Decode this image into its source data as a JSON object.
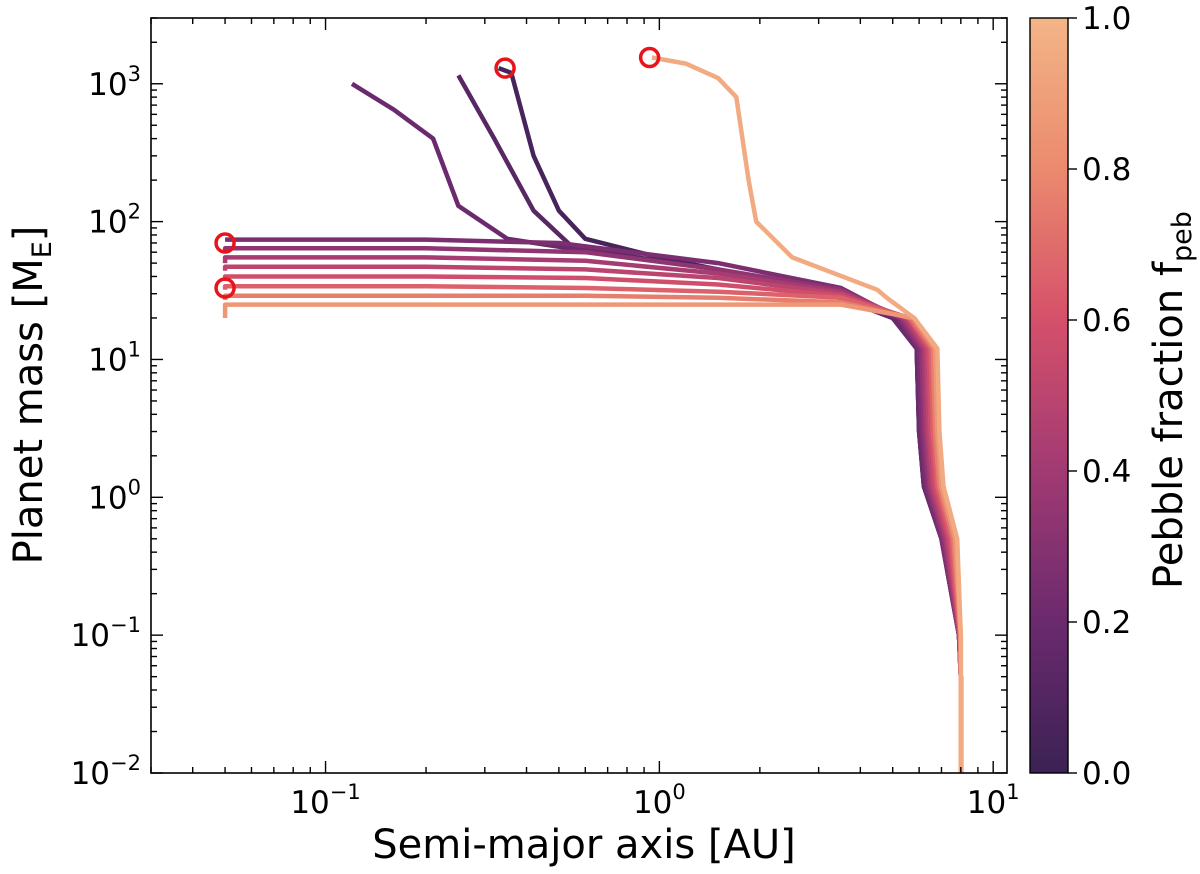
{
  "chart_data": {
    "type": "line",
    "xlabel": "Semi-major axis [AU]",
    "ylabel_main": "Planet mass [M",
    "ylabel_sub": "E",
    "ylabel_end": "]",
    "x_scale": "log",
    "y_scale": "log",
    "xlim": [
      0.03,
      11
    ],
    "ylim": [
      0.01,
      3000
    ],
    "x_ticks": [
      {
        "value": 0.1,
        "base": "10",
        "exp": "−1"
      },
      {
        "value": 1,
        "base": "10",
        "exp": "0"
      },
      {
        "value": 10,
        "base": "10",
        "exp": "1"
      }
    ],
    "y_ticks": [
      {
        "value": 0.01,
        "base": "10",
        "exp": "−2"
      },
      {
        "value": 0.1,
        "base": "10",
        "exp": "−1"
      },
      {
        "value": 1,
        "base": "10",
        "exp": "0"
      },
      {
        "value": 10,
        "base": "10",
        "exp": "1"
      },
      {
        "value": 100,
        "base": "10",
        "exp": "2"
      },
      {
        "value": 1000,
        "base": "10",
        "exp": "3"
      }
    ],
    "grid": false,
    "colorbar": {
      "label_main": "Pebble fraction f",
      "label_sub": "peb",
      "min": 0.0,
      "max": 1.0,
      "ticks": [
        "0.0",
        "0.2",
        "0.4",
        "0.6",
        "0.8",
        "1.0"
      ],
      "colors": [
        "#3b2254",
        "#6b2a6e",
        "#a13a73",
        "#d5506a",
        "#eb8a6e",
        "#f3b587"
      ]
    },
    "series": [
      {
        "fpeb": 0.05,
        "points": [
          [
            8.0,
            0.01
          ],
          [
            8.0,
            0.05
          ],
          [
            7.9,
            0.1
          ],
          [
            7.0,
            0.5
          ],
          [
            6.2,
            1.2
          ],
          [
            6.0,
            3
          ],
          [
            5.9,
            12
          ],
          [
            5.0,
            20
          ],
          [
            3.0,
            32
          ],
          [
            1.5,
            45
          ],
          [
            1.0,
            55
          ],
          [
            0.6,
            75
          ],
          [
            0.5,
            120
          ],
          [
            0.42,
            300
          ],
          [
            0.36,
            1200
          ],
          [
            0.33,
            1300
          ]
        ]
      },
      {
        "fpeb": 0.12,
        "points": [
          [
            8.0,
            0.01
          ],
          [
            8.0,
            0.05
          ],
          [
            7.9,
            0.1
          ],
          [
            7.0,
            0.5
          ],
          [
            6.2,
            1.2
          ],
          [
            6.0,
            3
          ],
          [
            5.9,
            12
          ],
          [
            5.0,
            20
          ],
          [
            3.0,
            32
          ],
          [
            1.5,
            45
          ],
          [
            1.0,
            52
          ],
          [
            0.55,
            65
          ],
          [
            0.42,
            120
          ],
          [
            0.32,
            400
          ],
          [
            0.25,
            1150
          ]
        ]
      },
      {
        "fpeb": 0.2,
        "points": [
          [
            8.0,
            0.01
          ],
          [
            8.0,
            0.05
          ],
          [
            7.9,
            0.1
          ],
          [
            7.0,
            0.5
          ],
          [
            6.2,
            1.2
          ],
          [
            6.0,
            3
          ],
          [
            5.9,
            12
          ],
          [
            5.0,
            20
          ],
          [
            3.0,
            32
          ],
          [
            1.5,
            45
          ],
          [
            0.7,
            58
          ],
          [
            0.35,
            75
          ],
          [
            0.25,
            130
          ],
          [
            0.21,
            400
          ],
          [
            0.16,
            650
          ],
          [
            0.12,
            1000
          ]
        ]
      },
      {
        "fpeb": 0.26,
        "points": [
          [
            8.0,
            0.01
          ],
          [
            8.0,
            0.05
          ],
          [
            7.9,
            0.1
          ],
          [
            7.0,
            0.5
          ],
          [
            6.3,
            1.2
          ],
          [
            6.1,
            3
          ],
          [
            6.0,
            12
          ],
          [
            5.2,
            20
          ],
          [
            3.5,
            33
          ],
          [
            1.5,
            50
          ],
          [
            0.5,
            70
          ],
          [
            0.2,
            74
          ],
          [
            0.05,
            74
          ]
        ]
      },
      {
        "fpeb": 0.34,
        "points": [
          [
            8.0,
            0.01
          ],
          [
            8.0,
            0.05
          ],
          [
            7.9,
            0.1
          ],
          [
            7.1,
            0.5
          ],
          [
            6.4,
            1.2
          ],
          [
            6.2,
            3
          ],
          [
            6.1,
            12
          ],
          [
            5.3,
            20
          ],
          [
            3.5,
            32
          ],
          [
            1.5,
            45
          ],
          [
            0.6,
            60
          ],
          [
            0.2,
            64
          ],
          [
            0.05,
            64
          ],
          [
            0.05,
            60
          ]
        ]
      },
      {
        "fpeb": 0.42,
        "points": [
          [
            8.0,
            0.01
          ],
          [
            8.0,
            0.05
          ],
          [
            7.9,
            0.1
          ],
          [
            7.2,
            0.5
          ],
          [
            6.5,
            1.2
          ],
          [
            6.3,
            3
          ],
          [
            6.2,
            12
          ],
          [
            5.4,
            20
          ],
          [
            3.5,
            31
          ],
          [
            1.5,
            42
          ],
          [
            0.6,
            52
          ],
          [
            0.2,
            55
          ],
          [
            0.05,
            55
          ],
          [
            0.05,
            50
          ]
        ]
      },
      {
        "fpeb": 0.5,
        "points": [
          [
            8.0,
            0.01
          ],
          [
            8.0,
            0.05
          ],
          [
            7.95,
            0.1
          ],
          [
            7.3,
            0.5
          ],
          [
            6.6,
            1.2
          ],
          [
            6.4,
            3
          ],
          [
            6.3,
            12
          ],
          [
            5.5,
            20
          ],
          [
            3.5,
            30
          ],
          [
            1.5,
            39
          ],
          [
            0.6,
            45
          ],
          [
            0.2,
            47
          ],
          [
            0.05,
            47
          ],
          [
            0.05,
            44
          ]
        ]
      },
      {
        "fpeb": 0.58,
        "points": [
          [
            8.0,
            0.01
          ],
          [
            8.0,
            0.05
          ],
          [
            7.95,
            0.1
          ],
          [
            7.4,
            0.5
          ],
          [
            6.7,
            1.2
          ],
          [
            6.5,
            3
          ],
          [
            6.4,
            12
          ],
          [
            5.6,
            20
          ],
          [
            3.5,
            29
          ],
          [
            1.5,
            35
          ],
          [
            0.6,
            39
          ],
          [
            0.2,
            40
          ],
          [
            0.05,
            40
          ],
          [
            0.05,
            37
          ]
        ]
      },
      {
        "fpeb": 0.66,
        "points": [
          [
            8.0,
            0.01
          ],
          [
            8.0,
            0.05
          ],
          [
            7.95,
            0.1
          ],
          [
            7.5,
            0.5
          ],
          [
            6.8,
            1.2
          ],
          [
            6.6,
            3
          ],
          [
            6.5,
            12
          ],
          [
            5.6,
            20
          ],
          [
            3.5,
            28
          ],
          [
            1.5,
            31
          ],
          [
            0.6,
            33
          ],
          [
            0.2,
            34
          ],
          [
            0.05,
            34
          ],
          [
            0.05,
            32
          ]
        ]
      },
      {
        "fpeb": 0.76,
        "points": [
          [
            8.0,
            0.01
          ],
          [
            8.0,
            0.05
          ],
          [
            8.0,
            0.1
          ],
          [
            7.6,
            0.5
          ],
          [
            6.9,
            1.2
          ],
          [
            6.7,
            3
          ],
          [
            6.6,
            12
          ],
          [
            5.7,
            20
          ],
          [
            3.5,
            26
          ],
          [
            1.5,
            28
          ],
          [
            0.6,
            29
          ],
          [
            0.2,
            29
          ],
          [
            0.05,
            29
          ],
          [
            0.05,
            27
          ]
        ]
      },
      {
        "fpeb": 0.86,
        "points": [
          [
            8.0,
            0.01
          ],
          [
            8.0,
            0.05
          ],
          [
            8.0,
            0.1
          ],
          [
            7.7,
            0.5
          ],
          [
            7.0,
            1.2
          ],
          [
            6.8,
            3
          ],
          [
            6.7,
            12
          ],
          [
            5.8,
            20
          ],
          [
            3.5,
            25
          ],
          [
            1.5,
            25
          ],
          [
            0.6,
            25
          ],
          [
            0.2,
            25
          ],
          [
            0.05,
            25
          ],
          [
            0.05,
            20
          ]
        ]
      },
      {
        "fpeb": 0.95,
        "points": [
          [
            8.0,
            0.01
          ],
          [
            8.0,
            0.05
          ],
          [
            8.0,
            0.1
          ],
          [
            7.8,
            0.5
          ],
          [
            7.1,
            1.2
          ],
          [
            6.9,
            3
          ],
          [
            6.8,
            12
          ],
          [
            5.8,
            20
          ],
          [
            4.8,
            28
          ],
          [
            4.5,
            32
          ],
          [
            2.5,
            55
          ],
          [
            1.95,
            100
          ],
          [
            1.85,
            200
          ],
          [
            1.7,
            800
          ],
          [
            1.5,
            1100
          ],
          [
            1.2,
            1400
          ],
          [
            0.95,
            1550
          ]
        ]
      }
    ],
    "markers": [
      {
        "x": 0.05,
        "y": 70
      },
      {
        "x": 0.05,
        "y": 33
      },
      {
        "x": 0.345,
        "y": 1300
      },
      {
        "x": 0.935,
        "y": 1550
      }
    ],
    "marker_color": "#e8141c"
  }
}
